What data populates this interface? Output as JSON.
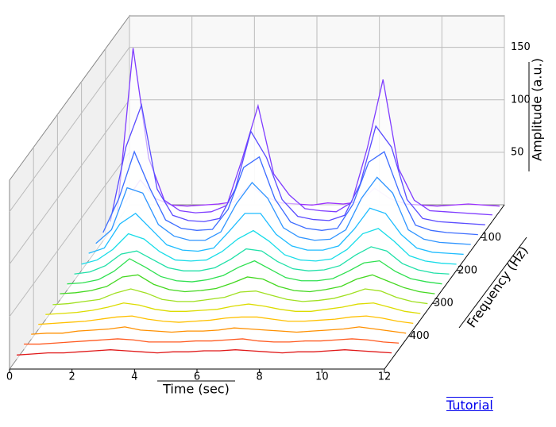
{
  "chart_data": {
    "type": "waterfall",
    "xlabel": "Time (sec)",
    "ylabel": "Frequency (Hz)",
    "zlabel": "Amplitude (a.u.)",
    "x": [
      0,
      0.5,
      1,
      1.5,
      2,
      2.5,
      3,
      3.5,
      4,
      4.5,
      5,
      5.5,
      6,
      6.5,
      7,
      7.5,
      8,
      8.5,
      9,
      9.5,
      10,
      10.5,
      11,
      11.5,
      12
    ],
    "xlim": [
      0,
      12
    ],
    "xticks": [
      0,
      2,
      4,
      6,
      8,
      10,
      12
    ],
    "ylim": [
      0,
      500
    ],
    "yticks": [
      100,
      200,
      300,
      400
    ],
    "zlim": [
      0,
      180
    ],
    "zticks": [
      50,
      100,
      150
    ],
    "grid": true,
    "series": [
      {
        "frequency": 20,
        "color": "#9b30ff",
        "values": [
          8,
          30,
          12,
          6,
          5,
          6,
          7,
          9,
          25,
          14,
          8,
          7,
          6,
          8,
          7,
          9,
          22,
          12,
          7,
          6,
          5,
          6,
          7,
          6,
          5
        ]
      },
      {
        "frequency": 50,
        "color": "#7f3cff",
        "values": [
          10,
          165,
          60,
          20,
          10,
          8,
          9,
          15,
          60,
          110,
          45,
          25,
          12,
          10,
          9,
          18,
          70,
          135,
          50,
          20,
          10,
          9,
          8,
          7,
          6
        ]
      },
      {
        "frequency": 80,
        "color": "#5a4cff",
        "values": [
          9,
          80,
          120,
          40,
          15,
          10,
          9,
          12,
          40,
          95,
          70,
          30,
          14,
          11,
          10,
          15,
          45,
          100,
          80,
          30,
          12,
          9,
          8,
          7,
          6
        ]
      },
      {
        "frequency": 110,
        "color": "#3c6cff",
        "values": [
          8,
          40,
          85,
          50,
          20,
          12,
          10,
          11,
          30,
          70,
          80,
          40,
          18,
          12,
          10,
          12,
          35,
          75,
          85,
          45,
          15,
          10,
          8,
          7,
          6
        ]
      },
      {
        "frequency": 140,
        "color": "#2f94ff",
        "values": [
          7,
          20,
          60,
          55,
          25,
          14,
          10,
          10,
          18,
          45,
          65,
          50,
          22,
          13,
          10,
          11,
          20,
          50,
          70,
          55,
          20,
          11,
          8,
          7,
          6
        ]
      },
      {
        "frequency": 170,
        "color": "#1fbcff",
        "values": [
          7,
          12,
          35,
          45,
          30,
          15,
          10,
          9,
          12,
          28,
          45,
          45,
          25,
          14,
          10,
          10,
          14,
          30,
          50,
          45,
          25,
          12,
          8,
          7,
          6
        ]
      },
      {
        "frequency": 200,
        "color": "#18dce8",
        "values": [
          6,
          10,
          20,
          35,
          30,
          18,
          10,
          9,
          10,
          18,
          30,
          38,
          28,
          15,
          10,
          9,
          11,
          20,
          35,
          40,
          28,
          14,
          9,
          7,
          6
        ]
      },
      {
        "frequency": 230,
        "color": "#20e0a8",
        "values": [
          6,
          8,
          14,
          25,
          28,
          20,
          12,
          9,
          9,
          12,
          20,
          30,
          28,
          18,
          11,
          9,
          10,
          14,
          24,
          32,
          28,
          16,
          10,
          7,
          6
        ]
      },
      {
        "frequency": 260,
        "color": "#2ee050",
        "values": [
          6,
          7,
          10,
          18,
          30,
          22,
          13,
          9,
          8,
          10,
          14,
          22,
          28,
          20,
          12,
          9,
          9,
          11,
          18,
          26,
          28,
          18,
          11,
          8,
          6
        ]
      },
      {
        "frequency": 290,
        "color": "#44d820",
        "values": [
          6,
          7,
          9,
          13,
          22,
          24,
          15,
          10,
          8,
          9,
          11,
          16,
          22,
          20,
          13,
          9,
          8,
          10,
          13,
          20,
          24,
          18,
          12,
          8,
          6
        ]
      },
      {
        "frequency": 320,
        "color": "#a0e020",
        "values": [
          5,
          6,
          8,
          10,
          16,
          20,
          16,
          10,
          8,
          8,
          10,
          12,
          17,
          18,
          14,
          10,
          8,
          9,
          11,
          15,
          20,
          18,
          12,
          8,
          6
        ]
      },
      {
        "frequency": 350,
        "color": "#dcdc00",
        "values": [
          5,
          6,
          7,
          9,
          12,
          16,
          14,
          10,
          8,
          8,
          9,
          10,
          13,
          15,
          13,
          10,
          8,
          8,
          10,
          12,
          15,
          16,
          12,
          8,
          6
        ]
      },
      {
        "frequency": 380,
        "color": "#ffc000",
        "values": [
          5,
          6,
          7,
          8,
          10,
          12,
          13,
          10,
          8,
          7,
          8,
          9,
          11,
          12,
          12,
          10,
          8,
          8,
          9,
          10,
          12,
          13,
          11,
          8,
          6
        ]
      },
      {
        "frequency": 410,
        "color": "#ff9000",
        "values": [
          5,
          6,
          6,
          8,
          9,
          10,
          12,
          9,
          8,
          7,
          8,
          8,
          9,
          11,
          10,
          9,
          8,
          7,
          8,
          9,
          10,
          12,
          10,
          8,
          6
        ]
      },
      {
        "frequency": 440,
        "color": "#ff5a20",
        "values": [
          5,
          5,
          6,
          7,
          8,
          9,
          10,
          9,
          7,
          7,
          7,
          8,
          8,
          9,
          10,
          8,
          7,
          7,
          8,
          8,
          9,
          10,
          9,
          7,
          6
        ]
      },
      {
        "frequency": 470,
        "color": "#e01818",
        "values": [
          4,
          5,
          6,
          6,
          7,
          8,
          9,
          8,
          7,
          6,
          7,
          7,
          8,
          8,
          9,
          8,
          7,
          6,
          7,
          7,
          8,
          9,
          8,
          7,
          6
        ]
      }
    ]
  },
  "tutorial_link": "Tutorial"
}
